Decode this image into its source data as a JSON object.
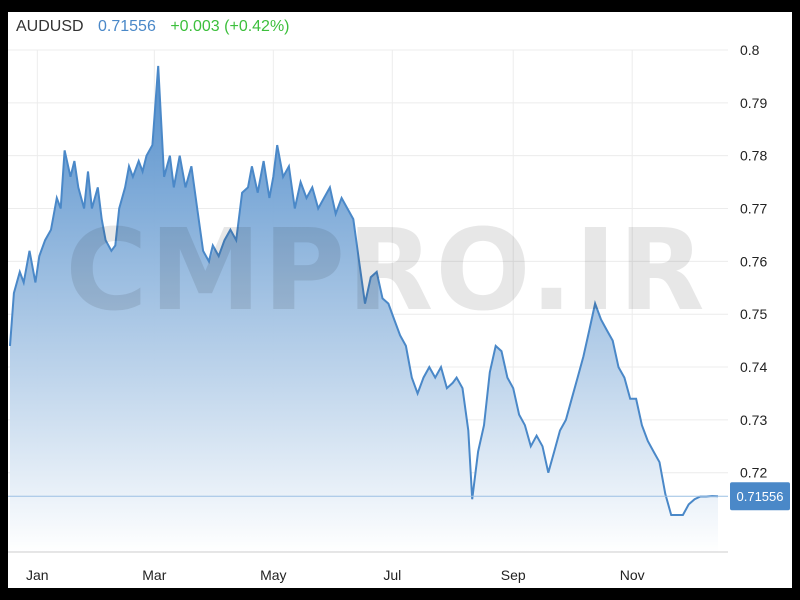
{
  "header": {
    "symbol": "AUDUSD",
    "price": "0.71556",
    "change": "+0.003 (+0.42%)"
  },
  "watermark": "CMPRO.IR",
  "colors": {
    "line": "#4a88c8",
    "fill_top": "#4a88c8",
    "fill_bottom": "#ffffff",
    "grid": "#ececec",
    "badge": "#4a88c8",
    "positive": "#3cbf3c"
  },
  "chart_data": {
    "type": "area",
    "title": "AUDUSD",
    "xlabel": "",
    "ylabel": "",
    "grid": true,
    "ylim": [
      0.705,
      0.8
    ],
    "y_ticks": [
      0.72,
      0.73,
      0.74,
      0.75,
      0.76,
      0.77,
      0.78,
      0.79,
      0.8
    ],
    "y_tick_labels": [
      "0.72",
      "0.73",
      "0.74",
      "0.75",
      "0.76",
      "0.77",
      "0.78",
      "0.79",
      "0.8"
    ],
    "x_ticks": [
      {
        "label": "Jan",
        "x": "2016-01-15"
      },
      {
        "label": "Mar",
        "x": "2016-03-15"
      },
      {
        "label": "May",
        "x": "2016-05-15"
      },
      {
        "label": "Jul",
        "x": "2016-07-15"
      },
      {
        "label": "Sep",
        "x": "2016-09-15"
      },
      {
        "label": "Nov",
        "x": "2016-11-15"
      }
    ],
    "last_value_label": "0.71556",
    "last_value": 0.71556,
    "series": [
      {
        "x": [
          "2016-01-01",
          "2016-01-03",
          "2016-01-06",
          "2016-01-08",
          "2016-01-11",
          "2016-01-14",
          "2016-01-16",
          "2016-01-19",
          "2016-01-22",
          "2016-01-25",
          "2016-01-27",
          "2016-01-29",
          "2016-02-01",
          "2016-02-03",
          "2016-02-05",
          "2016-02-08",
          "2016-02-10",
          "2016-02-12",
          "2016-02-15",
          "2016-02-17",
          "2016-02-19",
          "2016-02-22",
          "2016-02-24",
          "2016-02-26",
          "2016-02-29",
          "2016-03-02",
          "2016-03-04",
          "2016-03-07",
          "2016-03-09",
          "2016-03-11",
          "2016-03-14",
          "2016-03-17",
          "2016-03-20",
          "2016-03-23",
          "2016-03-25",
          "2016-03-28",
          "2016-03-31",
          "2016-04-03",
          "2016-04-06",
          "2016-04-09",
          "2016-04-12",
          "2016-04-14",
          "2016-04-17",
          "2016-04-20",
          "2016-04-23",
          "2016-04-26",
          "2016-04-29",
          "2016-05-02",
          "2016-05-04",
          "2016-05-07",
          "2016-05-10",
          "2016-05-13",
          "2016-05-15",
          "2016-05-17",
          "2016-05-20",
          "2016-05-23",
          "2016-05-26",
          "2016-05-29",
          "2016-06-01",
          "2016-06-04",
          "2016-06-07",
          "2016-06-10",
          "2016-06-13",
          "2016-06-16",
          "2016-06-19",
          "2016-06-22",
          "2016-06-25",
          "2016-06-28",
          "2016-07-01",
          "2016-07-04",
          "2016-07-07",
          "2016-07-10",
          "2016-07-13",
          "2016-07-16",
          "2016-07-19",
          "2016-07-22",
          "2016-07-25",
          "2016-07-28",
          "2016-07-31",
          "2016-08-03",
          "2016-08-06",
          "2016-08-09",
          "2016-08-12",
          "2016-08-15",
          "2016-08-17",
          "2016-08-20",
          "2016-08-23",
          "2016-08-25",
          "2016-08-28",
          "2016-08-31",
          "2016-09-03",
          "2016-09-06",
          "2016-09-09",
          "2016-09-12",
          "2016-09-15",
          "2016-09-18",
          "2016-09-21",
          "2016-09-24",
          "2016-09-27",
          "2016-09-30",
          "2016-10-03",
          "2016-10-06",
          "2016-10-09",
          "2016-10-12",
          "2016-10-15",
          "2016-10-18",
          "2016-10-21",
          "2016-10-24",
          "2016-10-27",
          "2016-10-30",
          "2016-11-02",
          "2016-11-05",
          "2016-11-08",
          "2016-11-11",
          "2016-11-14",
          "2016-11-17",
          "2016-11-20",
          "2016-11-23",
          "2016-11-26",
          "2016-11-29",
          "2016-12-02",
          "2016-12-05",
          "2016-12-08",
          "2016-12-11",
          "2016-12-14",
          "2016-12-17",
          "2016-12-20",
          "2016-12-23",
          "2016-12-26",
          "2016-12-29"
        ],
        "values": [
          0.744,
          0.754,
          0.758,
          0.756,
          0.762,
          0.756,
          0.761,
          0.764,
          0.766,
          0.772,
          0.77,
          0.781,
          0.776,
          0.779,
          0.774,
          0.77,
          0.777,
          0.77,
          0.774,
          0.768,
          0.764,
          0.762,
          0.763,
          0.77,
          0.774,
          0.778,
          0.776,
          0.779,
          0.777,
          0.78,
          0.782,
          0.797,
          0.776,
          0.78,
          0.774,
          0.78,
          0.774,
          0.778,
          0.77,
          0.762,
          0.76,
          0.763,
          0.761,
          0.764,
          0.766,
          0.764,
          0.773,
          0.774,
          0.778,
          0.773,
          0.779,
          0.772,
          0.776,
          0.782,
          0.776,
          0.778,
          0.77,
          0.775,
          0.772,
          0.774,
          0.77,
          0.772,
          0.774,
          0.769,
          0.772,
          0.77,
          0.768,
          0.76,
          0.752,
          0.757,
          0.758,
          0.753,
          0.752,
          0.749,
          0.746,
          0.744,
          0.738,
          0.735,
          0.738,
          0.74,
          0.738,
          0.74,
          0.736,
          0.737,
          0.738,
          0.736,
          0.728,
          0.715,
          0.724,
          0.729,
          0.739,
          0.744,
          0.743,
          0.738,
          0.736,
          0.731,
          0.729,
          0.725,
          0.727,
          0.725,
          0.72,
          0.724,
          0.728,
          0.73,
          0.734,
          0.738,
          0.742,
          0.747,
          0.752,
          0.749,
          0.747,
          0.745,
          0.74,
          0.738,
          0.734,
          0.734,
          0.729,
          0.726,
          0.724,
          0.722,
          0.716,
          0.712,
          0.712,
          0.712,
          0.714,
          0.715,
          0.7155,
          0.7155,
          0.7156,
          0.71556
        ]
      }
    ]
  }
}
